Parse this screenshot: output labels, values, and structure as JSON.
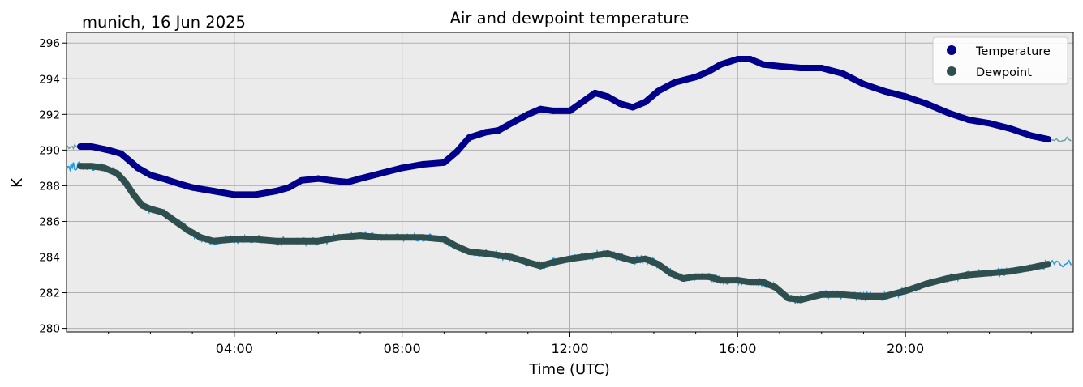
{
  "chart_data": {
    "type": "line",
    "title": "Air and dewpoint temperature",
    "subtitle": "munich, 16 Jun 2025",
    "xlabel": "Time (UTC)",
    "ylabel": "K",
    "xlim": [
      0,
      24
    ],
    "ylim": [
      279.8,
      296.6
    ],
    "x_ticks": [
      4,
      8,
      12,
      16,
      20
    ],
    "x_tick_labels": [
      "04:00",
      "08:00",
      "12:00",
      "16:00",
      "20:00"
    ],
    "y_ticks": [
      280,
      282,
      284,
      286,
      288,
      290,
      292,
      294,
      296
    ],
    "y_tick_labels": [
      "280",
      "282",
      "284",
      "286",
      "288",
      "290",
      "292",
      "294",
      "296"
    ],
    "grid": true,
    "legend_position": "top-right",
    "background_color": "#ebebeb",
    "series": [
      {
        "name": "Temperature",
        "marker_color": "#00008b",
        "raw_color": "#6fa3a8",
        "x": [
          0.33,
          0.6,
          1.0,
          1.3,
          1.5,
          1.7,
          2.0,
          2.3,
          2.7,
          3.0,
          3.5,
          4.0,
          4.5,
          5.0,
          5.3,
          5.6,
          6.0,
          6.3,
          6.7,
          7.0,
          7.5,
          8.0,
          8.5,
          9.0,
          9.3,
          9.6,
          10.0,
          10.3,
          10.6,
          11.0,
          11.3,
          11.6,
          12.0,
          12.3,
          12.6,
          12.9,
          13.2,
          13.5,
          13.8,
          14.1,
          14.5,
          15.0,
          15.3,
          15.6,
          16.0,
          16.3,
          16.6,
          17.0,
          17.5,
          18.0,
          18.5,
          19.0,
          19.5,
          20.0,
          20.5,
          21.0,
          21.5,
          22.0,
          22.5,
          23.0,
          23.4
        ],
        "values": [
          290.2,
          290.2,
          290.0,
          289.8,
          289.4,
          289.0,
          288.6,
          288.4,
          288.1,
          287.9,
          287.7,
          287.5,
          287.5,
          287.7,
          287.9,
          288.3,
          288.4,
          288.3,
          288.2,
          288.4,
          288.7,
          289.0,
          289.2,
          289.3,
          289.9,
          290.7,
          291.0,
          291.1,
          291.5,
          292.0,
          292.3,
          292.2,
          292.2,
          292.7,
          293.2,
          293.0,
          292.6,
          292.4,
          292.7,
          293.3,
          293.8,
          294.1,
          294.4,
          294.8,
          295.1,
          295.1,
          294.8,
          294.7,
          294.6,
          294.6,
          294.3,
          293.7,
          293.3,
          293.0,
          292.6,
          292.1,
          291.7,
          291.5,
          291.2,
          290.8,
          290.6
        ]
      },
      {
        "name": "Dewpoint",
        "marker_color": "#2f4f4f",
        "raw_color": "#1e9be8",
        "x": [
          0.33,
          0.6,
          0.9,
          1.2,
          1.4,
          1.6,
          1.8,
          2.0,
          2.3,
          2.6,
          2.9,
          3.2,
          3.5,
          4.0,
          4.5,
          5.0,
          5.5,
          6.0,
          6.5,
          7.0,
          7.5,
          8.0,
          8.5,
          9.0,
          9.3,
          9.6,
          10.0,
          10.3,
          10.6,
          11.0,
          11.3,
          11.6,
          12.0,
          12.3,
          12.6,
          12.9,
          13.2,
          13.5,
          13.8,
          14.1,
          14.4,
          14.7,
          15.0,
          15.3,
          15.6,
          16.0,
          16.3,
          16.6,
          16.9,
          17.2,
          17.5,
          18.0,
          18.5,
          19.0,
          19.5,
          20.0,
          20.5,
          21.0,
          21.5,
          22.0,
          22.5,
          23.0,
          23.4
        ],
        "values": [
          289.1,
          289.1,
          289.0,
          288.7,
          288.2,
          287.5,
          286.9,
          286.7,
          286.5,
          286.0,
          285.5,
          285.1,
          284.9,
          285.0,
          285.0,
          284.9,
          284.9,
          284.9,
          285.1,
          285.2,
          285.1,
          285.1,
          285.1,
          285.0,
          284.6,
          284.3,
          284.2,
          284.1,
          284.0,
          283.7,
          283.5,
          283.7,
          283.9,
          284.0,
          284.1,
          284.2,
          284.0,
          283.8,
          283.9,
          283.6,
          283.1,
          282.8,
          282.9,
          282.9,
          282.7,
          282.7,
          282.6,
          282.6,
          282.3,
          281.7,
          281.6,
          281.9,
          281.9,
          281.8,
          281.8,
          282.1,
          282.5,
          282.8,
          283.0,
          283.1,
          283.2,
          283.4,
          283.6
        ]
      }
    ]
  }
}
